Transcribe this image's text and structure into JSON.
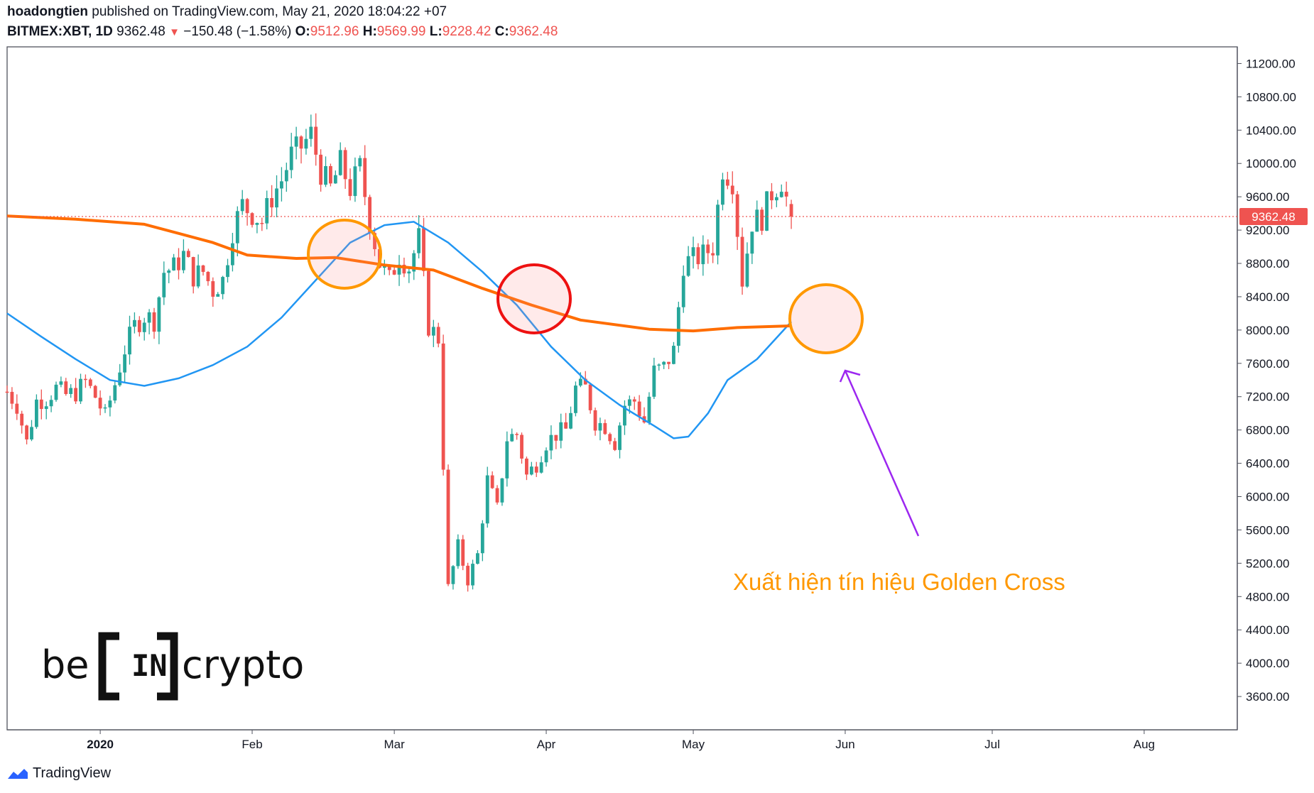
{
  "header": {
    "author": "hoadongtien",
    "published": "published on TradingView.com, May 21, 2020 18:04:22 +07",
    "symbol": "BITMEX:XBT, 1D",
    "price": "9362.48",
    "change": "−150.48 (−1.58%)",
    "o_label": "O:",
    "o_value": "9512.96",
    "h_label": "H:",
    "h_value": "9569.99",
    "l_label": "L:",
    "l_value": "9228.42",
    "c_label": "C:",
    "c_value": "9362.48"
  },
  "annotation_text": "Xuất hiện tín hiệu Golden Cross",
  "logo_text": {
    "left": "be",
    "middle": "IN",
    "right": "crypto"
  },
  "footer": {
    "brand": "TradingView"
  },
  "price_label": "9362.48",
  "colors": {
    "up": "#26a69a",
    "down": "#ef5350",
    "ma_fast": "#2196f3",
    "ma_slow": "#ff6d00",
    "annotation": "#ff9800",
    "arrow": "#9c27f0"
  },
  "chart_data": {
    "type": "candlestick",
    "ylim": [
      3200,
      11400
    ],
    "y_ticks": [
      "11200.00",
      "10800.00",
      "10400.00",
      "10000.00",
      "9600.00",
      "9200.00",
      "8800.00",
      "8400.00",
      "8000.00",
      "7600.00",
      "7200.00",
      "6800.00",
      "6400.00",
      "6000.00",
      "5600.00",
      "5200.00",
      "4800.00",
      "4400.00",
      "4000.00",
      "3600.00"
    ],
    "x_ticks": [
      "2020",
      "Feb",
      "Mar",
      "Apr",
      "May",
      "Jun",
      "Jul",
      "Aug"
    ],
    "x_tick_dates": [
      "2020-01-01",
      "2020-02-01",
      "2020-03-01",
      "2020-04-01",
      "2020-05-01",
      "2020-06-01",
      "2020-07-01",
      "2020-08-01"
    ],
    "x_range": [
      "2019-12-13",
      "2020-08-20"
    ],
    "last_price": 9362.48,
    "close_series": [
      [
        "2019-12-13",
        7260
      ],
      [
        "2019-12-15",
        7100
      ],
      [
        "2019-12-17",
        6650
      ],
      [
        "2019-12-19",
        7150
      ],
      [
        "2019-12-21",
        7180
      ],
      [
        "2019-12-23",
        7300
      ],
      [
        "2019-12-25",
        7220
      ],
      [
        "2019-12-27",
        7250
      ],
      [
        "2019-12-29",
        7380
      ],
      [
        "2019-12-31",
        7200
      ],
      [
        "2020-01-02",
        6960
      ],
      [
        "2020-01-04",
        7350
      ],
      [
        "2020-01-06",
        7770
      ],
      [
        "2020-01-08",
        8050
      ],
      [
        "2020-01-10",
        8170
      ],
      [
        "2020-01-12",
        8120
      ],
      [
        "2020-01-14",
        8700
      ],
      [
        "2020-01-16",
        8750
      ],
      [
        "2020-01-18",
        8900
      ],
      [
        "2020-01-20",
        8650
      ],
      [
        "2020-01-22",
        8700
      ],
      [
        "2020-01-24",
        8480
      ],
      [
        "2020-01-26",
        8600
      ],
      [
        "2020-01-28",
        9200
      ],
      [
        "2020-01-30",
        9500
      ],
      [
        "2020-02-01",
        9400
      ],
      [
        "2020-02-03",
        9300
      ],
      [
        "2020-02-05",
        9600
      ],
      [
        "2020-02-07",
        9800
      ],
      [
        "2020-02-09",
        10100
      ],
      [
        "2020-02-11",
        10200
      ],
      [
        "2020-02-13",
        10350
      ],
      [
        "2020-02-15",
        9900
      ],
      [
        "2020-02-17",
        9700
      ],
      [
        "2020-02-19",
        10000
      ],
      [
        "2020-02-21",
        9700
      ],
      [
        "2020-02-23",
        9950
      ],
      [
        "2020-02-25",
        9300
      ],
      [
        "2020-02-27",
        8800
      ],
      [
        "2020-02-29",
        8600
      ],
      [
        "2020-03-02",
        8900
      ],
      [
        "2020-03-04",
        8750
      ],
      [
        "2020-03-06",
        9100
      ],
      [
        "2020-03-08",
        8050
      ],
      [
        "2020-03-10",
        7900
      ],
      [
        "2020-03-12",
        4900
      ],
      [
        "2020-03-14",
        5400
      ],
      [
        "2020-03-16",
        5000
      ],
      [
        "2020-03-18",
        5300
      ],
      [
        "2020-03-20",
        6200
      ],
      [
        "2020-03-22",
        5850
      ],
      [
        "2020-03-24",
        6700
      ],
      [
        "2020-03-26",
        6750
      ],
      [
        "2020-03-28",
        6250
      ],
      [
        "2020-03-30",
        6400
      ],
      [
        "2020-04-01",
        6650
      ],
      [
        "2020-04-03",
        6750
      ],
      [
        "2020-04-05",
        6800
      ],
      [
        "2020-04-07",
        7300
      ],
      [
        "2020-04-09",
        7300
      ],
      [
        "2020-04-11",
        6900
      ],
      [
        "2020-04-13",
        6850
      ],
      [
        "2020-04-15",
        6650
      ],
      [
        "2020-04-17",
        7100
      ],
      [
        "2020-04-19",
        7150
      ],
      [
        "2020-04-21",
        6900
      ],
      [
        "2020-04-23",
        7500
      ],
      [
        "2020-04-25",
        7550
      ],
      [
        "2020-04-27",
        7750
      ],
      [
        "2020-04-29",
        8800
      ],
      [
        "2020-05-01",
        8850
      ],
      [
        "2020-05-03",
        8900
      ],
      [
        "2020-05-05",
        9000
      ],
      [
        "2020-05-07",
        9950
      ],
      [
        "2020-05-09",
        9800
      ],
      [
        "2020-05-11",
        8600
      ],
      [
        "2020-05-13",
        9300
      ],
      [
        "2020-05-15",
        9350
      ],
      [
        "2020-05-17",
        9650
      ],
      [
        "2020-05-19",
        9800
      ],
      [
        "2020-05-21",
        9362.48
      ]
    ],
    "series": [
      {
        "name": "",
        "line": "ma_fast",
        "points": [
          [
            "2019-12-13",
            8200
          ],
          [
            "2019-12-20",
            7920
          ],
          [
            "2019-12-27",
            7650
          ],
          [
            "2020-01-03",
            7400
          ],
          [
            "2020-01-10",
            7330
          ],
          [
            "2020-01-17",
            7420
          ],
          [
            "2020-01-24",
            7580
          ],
          [
            "2020-01-31",
            7800
          ],
          [
            "2020-02-07",
            8150
          ],
          [
            "2020-02-14",
            8600
          ],
          [
            "2020-02-21",
            9050
          ],
          [
            "2020-02-28",
            9260
          ],
          [
            "2020-03-05",
            9300
          ],
          [
            "2020-03-12",
            9050
          ],
          [
            "2020-03-19",
            8700
          ],
          [
            "2020-03-26",
            8300
          ],
          [
            "2020-04-02",
            7800
          ],
          [
            "2020-04-09",
            7400
          ],
          [
            "2020-04-16",
            7100
          ],
          [
            "2020-04-23",
            6850
          ],
          [
            "2020-04-27",
            6700
          ],
          [
            "2020-04-30",
            6720
          ],
          [
            "2020-05-04",
            7000
          ],
          [
            "2020-05-08",
            7400
          ],
          [
            "2020-05-14",
            7650
          ],
          [
            "2020-05-21",
            8100
          ]
        ]
      },
      {
        "name": "",
        "line": "ma_slow",
        "points": [
          [
            "2019-12-13",
            9370
          ],
          [
            "2019-12-27",
            9330
          ],
          [
            "2020-01-10",
            9270
          ],
          [
            "2020-01-24",
            9050
          ],
          [
            "2020-01-31",
            8900
          ],
          [
            "2020-02-10",
            8860
          ],
          [
            "2020-02-18",
            8870
          ],
          [
            "2020-02-28",
            8780
          ],
          [
            "2020-03-09",
            8720
          ],
          [
            "2020-03-19",
            8500
          ],
          [
            "2020-03-29",
            8300
          ],
          [
            "2020-04-08",
            8120
          ],
          [
            "2020-04-22",
            8010
          ],
          [
            "2020-05-01",
            7990
          ],
          [
            "2020-05-10",
            8030
          ],
          [
            "2020-05-21",
            8050
          ]
        ]
      }
    ]
  }
}
